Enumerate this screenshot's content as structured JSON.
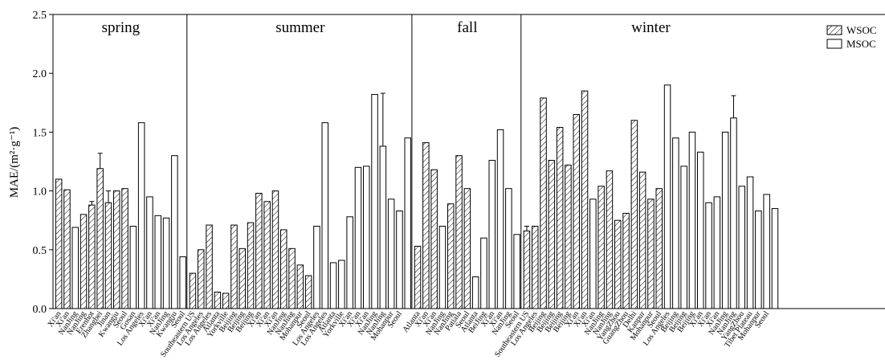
{
  "chart_data": {
    "type": "bar",
    "ylabel": "MAE/(m²·g⁻¹)",
    "ylim": [
      0,
      2.5
    ],
    "yticks": [
      "0.0",
      "0.5",
      "1.0",
      "1.5",
      "2.0",
      "2.5"
    ],
    "grid": false,
    "legend_placement": "top-right",
    "legend": [
      {
        "name": "WSOC",
        "pattern": "hatched"
      },
      {
        "name": "MSOC",
        "pattern": "open"
      }
    ],
    "seasons": [
      {
        "name": "spring",
        "groups": [
          {
            "label": "Xi'an",
            "series": "WSOC",
            "value": 1.1
          },
          {
            "label": "Xi'an",
            "series": "WSOC",
            "value": 1.01
          },
          {
            "label": "NanJing",
            "series": "MSOC",
            "value": 0.69
          },
          {
            "label": "NanJing",
            "series": "WSOC",
            "value": 0.8
          },
          {
            "label": "Erenhot",
            "series": "WSOC",
            "value": 0.88,
            "err": 0.03
          },
          {
            "label": "Zhangbei",
            "series": "WSOC",
            "value": 1.19,
            "err": 0.13
          },
          {
            "label": "Jinan",
            "series": "WSOC",
            "value": 0.9,
            "err": 0.1
          },
          {
            "label": "Kwangju",
            "series": "WSOC",
            "value": 1.0
          },
          {
            "label": "Seoul",
            "series": "WSOC",
            "value": 1.02
          },
          {
            "label": "Gosan",
            "series": "MSOC",
            "value": 0.7
          },
          {
            "label": "Los Angeles",
            "series": "MSOC",
            "value": 1.58
          },
          {
            "label": "Xi'an",
            "series": "MSOC",
            "value": 0.95
          },
          {
            "label": "Xi'an",
            "series": "MSOC",
            "value": 0.79
          },
          {
            "label": "NanJing",
            "series": "MSOC",
            "value": 0.77
          },
          {
            "label": "Kwangju",
            "series": "MSOC",
            "value": 1.3
          },
          {
            "label": "Seoul",
            "series": "MSOC",
            "value": 0.44
          }
        ]
      },
      {
        "name": "summer",
        "groups": [
          {
            "label": "Southeastern US",
            "series": "WSOC",
            "value": 0.3
          },
          {
            "label": "Los Angeles",
            "series": "WSOC",
            "value": 0.5
          },
          {
            "label": "Los Angeles",
            "series": "WSOC",
            "value": 0.71
          },
          {
            "label": "Atlanta",
            "series": "WSOC",
            "value": 0.14
          },
          {
            "label": "Yorkville",
            "series": "WSOC",
            "value": 0.13
          },
          {
            "label": "Beijing",
            "series": "WSOC",
            "value": 0.71
          },
          {
            "label": "Beijing",
            "series": "WSOC",
            "value": 0.51
          },
          {
            "label": "Beijing",
            "series": "WSOC",
            "value": 0.73
          },
          {
            "label": "Xi'an",
            "series": "WSOC",
            "value": 0.98
          },
          {
            "label": "Xi'an",
            "series": "WSOC",
            "value": 0.91
          },
          {
            "label": "Xi'an",
            "series": "WSOC",
            "value": 1.0
          },
          {
            "label": "NanJing",
            "series": "WSOC",
            "value": 0.67
          },
          {
            "label": "NanJing",
            "series": "WSOC",
            "value": 0.51
          },
          {
            "label": "Mohanpur",
            "series": "WSOC",
            "value": 0.37
          },
          {
            "label": "Seoul",
            "series": "WSOC",
            "value": 0.28
          },
          {
            "label": "Los Angeles",
            "series": "MSOC",
            "value": 0.7
          },
          {
            "label": "Los Angeles",
            "series": "MSOC",
            "value": 1.58
          },
          {
            "label": "Atlanta",
            "series": "MSOC",
            "value": 0.39
          },
          {
            "label": "Yorkville",
            "series": "MSOC",
            "value": 0.41
          },
          {
            "label": "Xi'an",
            "series": "MSOC",
            "value": 0.78
          },
          {
            "label": "Xi'an",
            "series": "MSOC",
            "value": 1.2
          },
          {
            "label": "Xi'an",
            "series": "MSOC",
            "value": 1.21
          },
          {
            "label": "NanJing",
            "series": "MSOC",
            "value": 1.82
          },
          {
            "label": "NanJing",
            "series": "MSOC",
            "value": 1.38,
            "err": 0.45
          },
          {
            "label": "Mohanpur",
            "series": "MSOC",
            "value": 0.93
          },
          {
            "label": "Seoul",
            "series": "MSOC",
            "value": 0.83
          },
          {
            "label": "",
            "series": "MSOC",
            "value": 1.45
          }
        ]
      },
      {
        "name": "fall",
        "groups": [
          {
            "label": "Atlanta",
            "series": "WSOC",
            "value": 0.53
          },
          {
            "label": "Xi'an",
            "series": "WSOC",
            "value": 1.41
          },
          {
            "label": "Xi'an",
            "series": "WSOC",
            "value": 1.18
          },
          {
            "label": "NanJing",
            "series": "MSOC",
            "value": 0.7
          },
          {
            "label": "NanJing",
            "series": "WSOC",
            "value": 0.89
          },
          {
            "label": "Patiala",
            "series": "WSOC",
            "value": 1.3
          },
          {
            "label": "Seoul",
            "series": "WSOC",
            "value": 1.02
          },
          {
            "label": "Atlanta",
            "series": "MSOC",
            "value": 0.27
          },
          {
            "label": "BeiJing",
            "series": "MSOC",
            "value": 0.6
          },
          {
            "label": "Xi'an",
            "series": "MSOC",
            "value": 1.26
          },
          {
            "label": "Xi'an",
            "series": "MSOC",
            "value": 1.52
          },
          {
            "label": "NanJing",
            "series": "MSOC",
            "value": 1.02
          },
          {
            "label": "Seoul",
            "series": "MSOC",
            "value": 0.63
          }
        ]
      },
      {
        "name": "winter",
        "groups": [
          {
            "label": "Southeastern US",
            "series": "WSOC",
            "value": 0.66,
            "err": 0.04
          },
          {
            "label": "Los Angeles",
            "series": "WSOC",
            "value": 0.7
          },
          {
            "label": "Beijing",
            "series": "WSOC",
            "value": 1.79
          },
          {
            "label": "Beijing",
            "series": "WSOC",
            "value": 1.26
          },
          {
            "label": "Beijing",
            "series": "WSOC",
            "value": 1.54
          },
          {
            "label": "Beijing",
            "series": "WSOC",
            "value": 1.22
          },
          {
            "label": "Xi'an",
            "series": "WSOC",
            "value": 1.65
          },
          {
            "label": "Xi'an",
            "series": "WSOC",
            "value": 1.85
          },
          {
            "label": "Xi'an",
            "series": "MSOC",
            "value": 0.93
          },
          {
            "label": "NanJing",
            "series": "WSOC",
            "value": 1.04
          },
          {
            "label": "NanJing",
            "series": "WSOC",
            "value": 1.17
          },
          {
            "label": "YangZhou",
            "series": "WSOC",
            "value": 0.75
          },
          {
            "label": "GuangZhou",
            "series": "WSOC",
            "value": 0.81
          },
          {
            "label": "Delhi",
            "series": "WSOC",
            "value": 1.6
          },
          {
            "label": "Kanpur",
            "series": "WSOC",
            "value": 1.16
          },
          {
            "label": "Mohanpur",
            "series": "WSOC",
            "value": 0.93
          },
          {
            "label": "Seoul",
            "series": "WSOC",
            "value": 1.02
          },
          {
            "label": "Los Angeles",
            "series": "MSOC",
            "value": 1.9
          },
          {
            "label": "Beijing",
            "series": "MSOC",
            "value": 1.45
          },
          {
            "label": "Beijing",
            "series": "MSOC",
            "value": 1.21
          },
          {
            "label": "Beijing",
            "series": "MSOC",
            "value": 1.5
          },
          {
            "label": "Xi'an",
            "series": "MSOC",
            "value": 1.33
          },
          {
            "label": "Xi'an",
            "series": "MSOC",
            "value": 0.9
          },
          {
            "label": "Xi'an",
            "series": "MSOC",
            "value": 0.95
          },
          {
            "label": "NanJing",
            "series": "MSOC",
            "value": 1.5
          },
          {
            "label": "NanJing",
            "series": "MSOC",
            "value": 1.62,
            "err": 0.19
          },
          {
            "label": "YangZhou",
            "series": "MSOC",
            "value": 1.04
          },
          {
            "label": "Tibet Plateau",
            "series": "MSOC",
            "value": 1.12
          },
          {
            "label": "Mohanpur",
            "series": "MSOC",
            "value": 0.83
          },
          {
            "label": "Seoul",
            "series": "MSOC",
            "value": 0.97
          },
          {
            "label": "",
            "series": "MSOC",
            "value": 0.85
          }
        ]
      }
    ]
  }
}
